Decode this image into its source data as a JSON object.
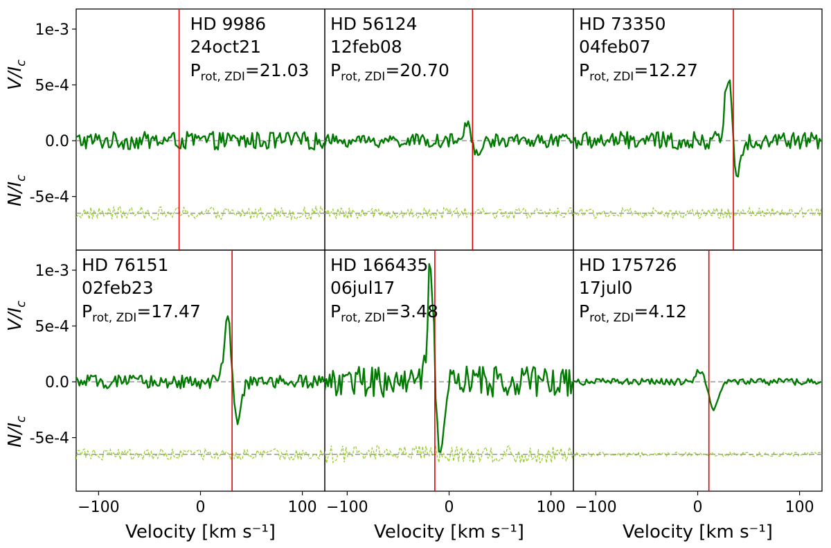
{
  "chart_data": {
    "type": "line",
    "layout": {
      "rows": 2,
      "cols": 3
    },
    "xlim": [
      -122,
      122
    ],
    "ylim": [
      -0.00098,
      0.00118
    ],
    "xticks": [
      -100,
      0,
      100
    ],
    "xtick_labels": [
      "−100",
      "0",
      "100"
    ],
    "yticks": [
      0.001,
      0.0005,
      0,
      -0.0005
    ],
    "ytick_labels": [
      "1e-3",
      "5e-4",
      "0.0",
      "-5e-4"
    ],
    "xlabel": "Velocity [km s⁻¹]",
    "ylabel_v": "V/I",
    "ylabel_v_sub": "c",
    "ylabel_n": "N/I",
    "ylabel_n_sub": "c",
    "null_offset": -0.00065,
    "prot_symbol": "P",
    "prot_sub": "rot, ZDI",
    "colors": {
      "stokes_v": "#007a00",
      "null": "#9acd32",
      "center": "#e00000",
      "zero": "#8c8c8c"
    },
    "panels": [
      {
        "star": "HD 9986",
        "date": "24oct21",
        "prot": "=21.03",
        "vrad": -21,
        "v_signal": [],
        "noise_v": 8e-05,
        "noise_n": 6e-05
      },
      {
        "star": "HD 56124",
        "date": "12feb08",
        "prot": "=20.70",
        "vrad": 23,
        "v_signal": [
          {
            "center": 19,
            "width": 4,
            "amp": 0.00015
          },
          {
            "center": 27,
            "width": 4,
            "amp": -0.00015
          }
        ],
        "noise_v": 6e-05,
        "noise_n": 5e-05
      },
      {
        "star": "HD 73350",
        "date": "04feb07",
        "prot": "=12.27",
        "vrad": 35,
        "v_signal": [
          {
            "center": 30,
            "width": 3.5,
            "amp": 0.00058
          },
          {
            "center": 38,
            "width": 3.5,
            "amp": -0.0003
          }
        ],
        "noise_v": 8e-05,
        "noise_n": 5e-05
      },
      {
        "star": "HD 76151",
        "date": "02feb23",
        "prot": "=17.47",
        "vrad": 31,
        "v_signal": [
          {
            "center": 27,
            "width": 3.5,
            "amp": 0.00058
          },
          {
            "center": 36,
            "width": 4,
            "amp": -0.00038
          }
        ],
        "noise_v": 6e-05,
        "noise_n": 5e-05
      },
      {
        "star": "HD 166435",
        "date": "06jul17",
        "prot": "=3.48",
        "vrad": -14,
        "v_signal": [
          {
            "center": -18,
            "width": 3,
            "amp": 0.00108
          },
          {
            "center": -9,
            "width": 4,
            "amp": -0.0006
          }
        ],
        "noise_v": 0.00014,
        "noise_n": 8e-05
      },
      {
        "star": "HD 175726",
        "date": "17jul0",
        "prot": "=4.12",
        "vrad": 11,
        "v_signal": [
          {
            "center": 4,
            "width": 5,
            "amp": 0.00012
          },
          {
            "center": 15,
            "width": 5,
            "amp": -0.00025
          }
        ],
        "noise_v": 3e-05,
        "noise_n": 2e-05
      }
    ]
  }
}
